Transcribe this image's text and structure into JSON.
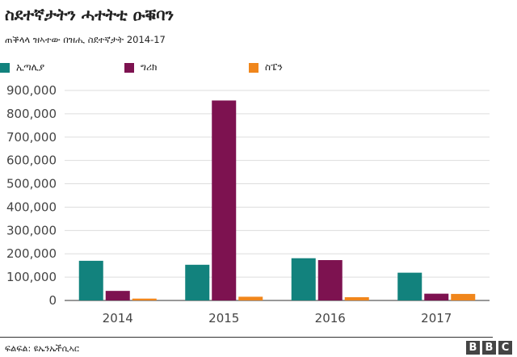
{
  "header": {
    "title": "ስደተኛታትን ሓተትቲ ዑቑባን",
    "subtitle": "ጠቕላላ ዝኣተው በዝሒ ስደተኛታት  2014-17"
  },
  "footer": {
    "source": "ፍልፍል: ዩኤንኤችሲኣር",
    "brand_letters": [
      "B",
      "B",
      "C"
    ]
  },
  "chart_data": {
    "type": "bar",
    "title": "ስደተኛታትን ሓተትቲ ዑቑባን",
    "subtitle": "ጠቕላላ ዝኣተው በዝሒ ስደተኛታት  2014-17",
    "categories": [
      "2014",
      "2015",
      "2016",
      "2017"
    ],
    "series": [
      {
        "name": "ኢጣሊያ",
        "color": "#12827d",
        "values": [
          170000,
          153000,
          181000,
          119000
        ]
      },
      {
        "name": "ግሪክ",
        "color": "#7d1250",
        "values": [
          41000,
          857000,
          173000,
          29000
        ]
      },
      {
        "name": "ስፔን",
        "color": "#f0861c",
        "values": [
          8000,
          16000,
          14000,
          28000
        ]
      }
    ],
    "yticks": [
      0,
      100000,
      200000,
      300000,
      400000,
      500000,
      600000,
      700000,
      800000,
      900000
    ],
    "ytick_labels": [
      "0",
      "100,000",
      "200,000",
      "300,000",
      "400,000",
      "500,000",
      "600,000",
      "700,000",
      "800,000",
      "900,000"
    ],
    "ylim": [
      0,
      900000
    ],
    "xlabel": "",
    "ylabel": "",
    "grid": true,
    "legend_position": "top-left"
  }
}
